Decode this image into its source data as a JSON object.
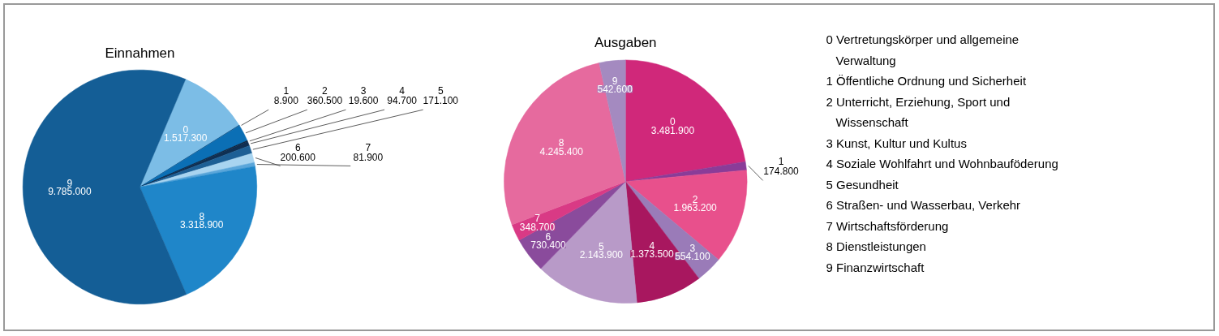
{
  "chart_data": [
    {
      "type": "pie",
      "title": "Einnahmen",
      "categories": [
        "0",
        "1",
        "2",
        "3",
        "4",
        "5",
        "6",
        "7",
        "8",
        "9"
      ],
      "values": [
        1517300,
        8900,
        360500,
        19600,
        94700,
        171100,
        200600,
        81900,
        3318900,
        9785000
      ],
      "value_labels": [
        "1.517.300",
        "8.900",
        "360.500",
        "19.600",
        "94.700",
        "171.100",
        "200.600",
        "81.900",
        "3.318.900",
        "9.785.000"
      ],
      "colors": [
        "#7cbde6",
        "#0d3b66",
        "#0b6fb5",
        "#061a33",
        "#0f2f52",
        "#1d5f95",
        "#a8d4f0",
        "#5aa6da",
        "#1f86c9",
        "#145e96"
      ]
    },
    {
      "type": "pie",
      "title": "Ausgaben",
      "categories": [
        "0",
        "1",
        "2",
        "3",
        "4",
        "5",
        "6",
        "7",
        "8",
        "9"
      ],
      "values": [
        3481900,
        174800,
        1963200,
        554100,
        1373500,
        2143900,
        730400,
        348700,
        4245400,
        542600
      ],
      "value_labels": [
        "3.481.900",
        "174.800",
        "1.963.200",
        "554.100",
        "1.373.500",
        "2.143.900",
        "730.400",
        "348.700",
        "4.245.400",
        "542.600"
      ],
      "colors": [
        "#d0287a",
        "#8a3c98",
        "#e8508c",
        "#9a7bb8",
        "#a8175f",
        "#b89ac8",
        "#8a4b9c",
        "#d93a85",
        "#e66a9e",
        "#a48ac0"
      ]
    },
    {
      "type": "other",
      "annotations": [
        "0 Vertretungskörper und allgemeine\nVerwaltung",
        "1 Öffentliche Ordnung und Sicherheit",
        "2 Unterricht, Erziehung, Sport und\nWissenschaft",
        "3 Kunst, Kultur und Kultus",
        "4 Soziale Wohlfahrt und Wohnbauföderung",
        "5 Gesundheit",
        "6 Straßen- und Wasserbau, Verkehr",
        "7 Wirtschaftsförderung",
        "8 Dienstleistungen",
        "9 Finanzwirtschaft"
      ]
    }
  ]
}
